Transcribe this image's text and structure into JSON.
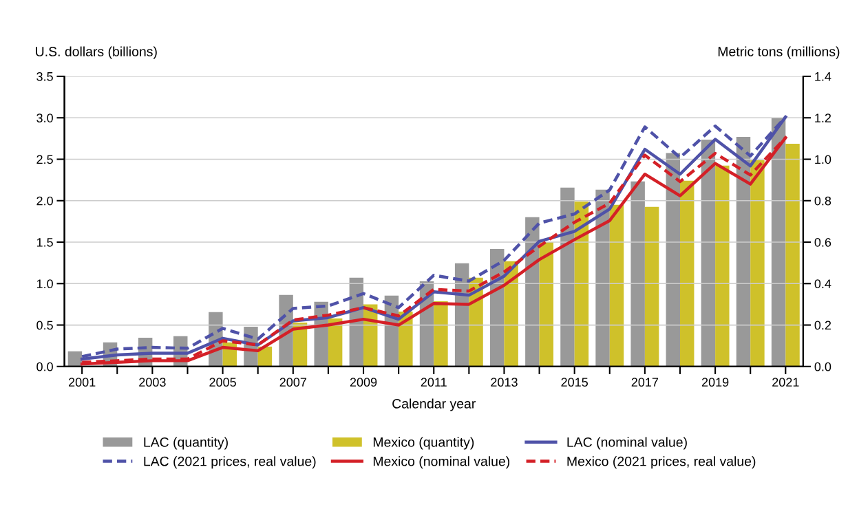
{
  "chart_data": {
    "type": "bar",
    "xlabel": "Calendar year",
    "ylabel": "U.S. dollars (billions)",
    "y2label": "Metric tons (millions)",
    "x": [
      2001,
      2002,
      2003,
      2004,
      2005,
      2006,
      2007,
      2008,
      2009,
      2010,
      2011,
      2012,
      2013,
      2014,
      2015,
      2016,
      2017,
      2018,
      2019,
      2020,
      2021
    ],
    "xlim": [
      2000.5,
      2021.5
    ],
    "xticks": [
      2001,
      {
        "value": 2002,
        "label": null
      },
      2003,
      {
        "value": 2004,
        "label": null
      },
      2005,
      {
        "value": 2006,
        "label": null
      },
      2007,
      {
        "value": 2008,
        "label": null
      },
      2009,
      {
        "value": 2010,
        "label": null
      },
      2011,
      {
        "value": 2012,
        "label": null
      },
      2013,
      {
        "value": 2014,
        "label": null
      },
      2015,
      {
        "value": 2016,
        "label": null
      },
      2017,
      {
        "value": 2018,
        "label": null
      },
      2019,
      {
        "value": 2020,
        "label": null
      },
      2021
    ],
    "ylim": [
      0,
      3.5
    ],
    "yticks": [
      {
        "value": 0,
        "label": "0.0"
      },
      0.5,
      {
        "value": 1,
        "label": "1.0"
      },
      1.5,
      {
        "value": 2,
        "label": "2.0"
      },
      2.5,
      {
        "value": 3,
        "label": "3.0"
      },
      3.5
    ],
    "y2lim": [
      0,
      1.4
    ],
    "y2ticks": [
      {
        "value": 0,
        "label": "0.0"
      },
      0.2,
      0.4,
      0.6,
      0.8,
      {
        "value": 1,
        "label": "1.0"
      },
      1.2,
      1.4
    ],
    "grid": "y",
    "legend": "bottom",
    "series": [
      {
        "name": "LAC (quantity)",
        "axis": "y2",
        "color": "#999999",
        "values": [
          0.073,
          0.116,
          0.139,
          0.146,
          0.262,
          0.192,
          0.345,
          0.312,
          0.428,
          0.342,
          0.411,
          0.498,
          0.567,
          0.72,
          0.863,
          0.853,
          0.893,
          1.03,
          1.095,
          1.108,
          1.2
        ]
      },
      {
        "name": "Mexico (quantity)",
        "axis": "y2",
        "color": "#cfc12a",
        "values": [
          null,
          null,
          null,
          null,
          0.116,
          0.096,
          0.212,
          0.232,
          0.3,
          0.265,
          0.315,
          0.428,
          0.508,
          0.6,
          0.796,
          0.78,
          0.77,
          0.896,
          0.969,
          0.995,
          1.075
        ]
      },
      {
        "name": "LAC (nominal value)",
        "type": "line",
        "line_style": "solid",
        "color": "#4f52a8",
        "values": [
          0.09,
          0.14,
          0.16,
          0.16,
          0.34,
          0.26,
          0.55,
          0.59,
          0.71,
          0.57,
          0.9,
          0.86,
          1.09,
          1.51,
          1.63,
          1.9,
          2.62,
          2.32,
          2.74,
          2.42,
          3.01
        ]
      },
      {
        "name": "LAC (2021 prices, real value)",
        "type": "line",
        "line_style": "dashed",
        "color": "#4f52a8",
        "values": [
          0.12,
          0.21,
          0.23,
          0.22,
          0.46,
          0.33,
          0.7,
          0.73,
          0.88,
          0.71,
          1.1,
          1.03,
          1.28,
          1.73,
          1.84,
          2.13,
          2.89,
          2.52,
          2.9,
          2.54,
          3.01
        ]
      },
      {
        "name": "Mexico (nominal value)",
        "type": "line",
        "line_style": "solid",
        "color": "#d42027",
        "values": [
          0.03,
          0.05,
          0.07,
          0.07,
          0.23,
          0.19,
          0.45,
          0.5,
          0.57,
          0.5,
          0.76,
          0.75,
          0.98,
          1.29,
          1.53,
          1.76,
          2.32,
          2.06,
          2.45,
          2.2,
          2.76
        ]
      },
      {
        "name": "Mexico (2021 prices, real value)",
        "type": "line",
        "line_style": "dashed",
        "color": "#d42027",
        "values": [
          0.05,
          0.07,
          0.09,
          0.09,
          0.31,
          0.26,
          0.56,
          0.62,
          0.71,
          0.61,
          0.93,
          0.91,
          1.14,
          1.45,
          1.74,
          1.97,
          2.55,
          2.23,
          2.57,
          2.31,
          2.76
        ]
      }
    ]
  }
}
